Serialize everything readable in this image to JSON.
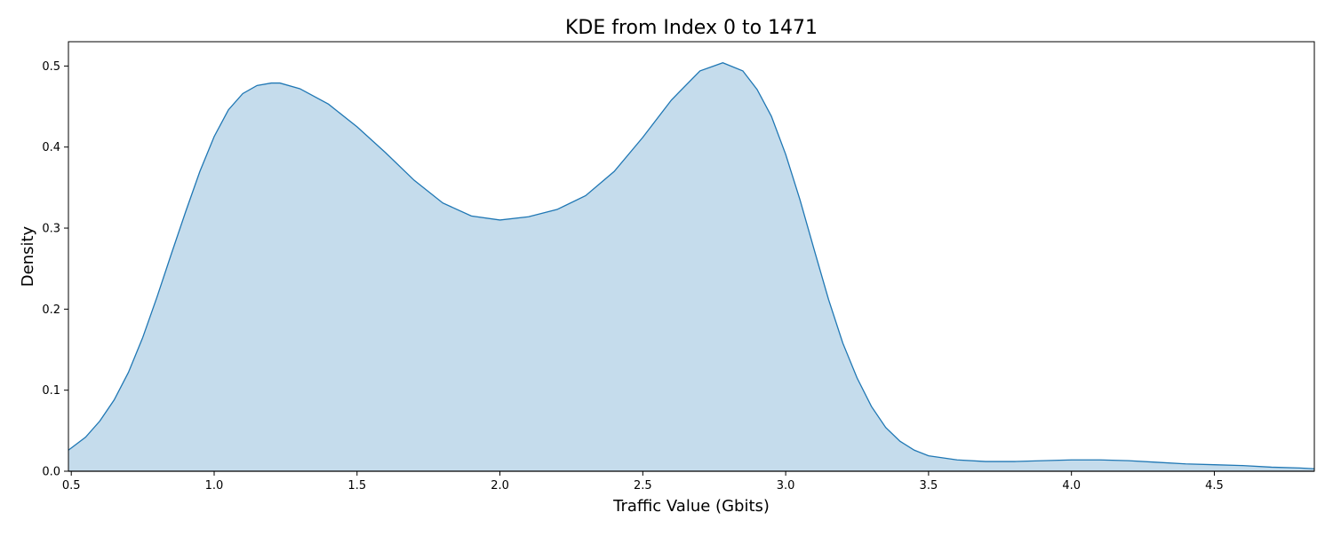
{
  "chart_data": {
    "type": "area",
    "title": "KDE from Index 0 to 1471",
    "xlabel": "Traffic Value (Gbits)",
    "ylabel": "Density",
    "xlim": [
      0.49,
      4.85
    ],
    "ylim": [
      0.0,
      0.53
    ],
    "x_ticks": [
      "0.5",
      "1.0",
      "1.5",
      "2.0",
      "2.5",
      "3.0",
      "3.5",
      "4.0",
      "4.5"
    ],
    "y_ticks": [
      "0.0",
      "0.1",
      "0.2",
      "0.3",
      "0.4",
      "0.5"
    ],
    "grid": false,
    "colors": {
      "line": "#1f77b4",
      "fill": "#c5dcec"
    },
    "series": [
      {
        "x": [
          0.49,
          0.55,
          0.6,
          0.65,
          0.7,
          0.75,
          0.8,
          0.85,
          0.9,
          0.95,
          1.0,
          1.05,
          1.1,
          1.15,
          1.2,
          1.23,
          1.3,
          1.4,
          1.5,
          1.6,
          1.7,
          1.8,
          1.9,
          2.0,
          2.1,
          2.2,
          2.3,
          2.4,
          2.5,
          2.6,
          2.7,
          2.78,
          2.85,
          2.9,
          2.95,
          3.0,
          3.05,
          3.1,
          3.15,
          3.2,
          3.25,
          3.3,
          3.35,
          3.4,
          3.45,
          3.5,
          3.6,
          3.7,
          3.8,
          3.9,
          4.0,
          4.1,
          4.2,
          4.3,
          4.4,
          4.5,
          4.6,
          4.7,
          4.8,
          4.85
        ],
        "y": [
          0.026,
          0.042,
          0.062,
          0.088,
          0.122,
          0.165,
          0.215,
          0.268,
          0.32,
          0.37,
          0.413,
          0.446,
          0.466,
          0.476,
          0.479,
          0.479,
          0.472,
          0.453,
          0.425,
          0.393,
          0.359,
          0.331,
          0.315,
          0.31,
          0.314,
          0.323,
          0.34,
          0.37,
          0.412,
          0.458,
          0.494,
          0.504,
          0.494,
          0.471,
          0.438,
          0.391,
          0.335,
          0.273,
          0.212,
          0.158,
          0.115,
          0.08,
          0.054,
          0.037,
          0.026,
          0.019,
          0.014,
          0.012,
          0.012,
          0.013,
          0.014,
          0.014,
          0.013,
          0.011,
          0.009,
          0.008,
          0.007,
          0.005,
          0.004,
          0.003
        ]
      }
    ]
  }
}
